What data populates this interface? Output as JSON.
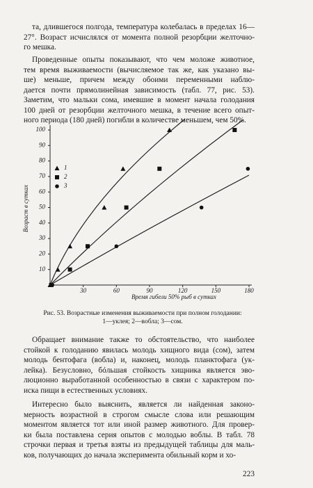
{
  "text_before": [
    [
      "та, длившегося полгода, температура колебалась в пределах 16—",
      "27°. Возраст исчислялся от момента полной резорбции желточно-",
      "го мешка."
    ],
    [
      "Проведенные опыты показывают, что чем моложе животное,",
      "тем время выживаемости (вычисляемое так же, как указано вы-",
      "ше) меньше, причем между обоими переменными наблю-",
      "дается почти прямолинейная зависимость (табл. 77, рис. 53).",
      "Заметим, что мальки сома, имевшие в момент начала голодания",
      "100 дней от резорбции желточного мешка, в течение всего опыт-",
      "ного периода (180 дней) погибли в количестве меньшем, чем 50%."
    ]
  ],
  "chart_data": {
    "type": "scatter",
    "xlabel": "Время гибели 50% рыб в сутках",
    "ylabel": "Возраст в сутках",
    "xlim": [
      0,
      180
    ],
    "ylim": [
      0,
      100
    ],
    "xticks": [
      30,
      60,
      90,
      120,
      150,
      180
    ],
    "yticks": [
      10,
      20,
      30,
      40,
      50,
      60,
      70,
      80,
      90,
      100
    ],
    "series": [
      {
        "name": "1",
        "marker": "triangle",
        "color": "#111",
        "x": [
          0,
          7,
          18,
          49,
          66,
          108
        ],
        "values": [
          0,
          10,
          25,
          50,
          75,
          100
        ]
      },
      {
        "name": "2",
        "marker": "square",
        "color": "#111",
        "x": [
          1,
          18,
          34,
          69,
          99,
          167
        ],
        "values": [
          0,
          10,
          25,
          50,
          75,
          100
        ]
      },
      {
        "name": "3",
        "marker": "circle",
        "color": "#111",
        "x": [
          2,
          60,
          137,
          179
        ],
        "values": [
          0,
          25,
          50,
          75
        ]
      }
    ]
  },
  "caption": [
    "Рис. 53. Возрастные изменения выживаемости при полном голодании:",
    "1—уклея; 2—вобла; 3—сом."
  ],
  "text_after": [
    [
      "Обращает внимание также то обстоятельство, что наиболее",
      "стойкой к голоданию явилась молодь хищного вида (сом), затем",
      "молодь бентофага (вобла) и, наконец, молодь планктофага (ук-",
      "лейка). Безусловно, бóльшая стойкость хищника является эво-",
      "люционно выработанной особенностью в связи с характером по-",
      "иска пищи в естественных условиях."
    ],
    [
      "Интересно было выяснить, является ли найденная законо-",
      "мерность возрастной в строгом смысле слова или решающим",
      "моментом является тот или иной размер животного. Для провер-",
      "ки была поставлена серия опытов с молодью воблы. В табл. 78",
      "строчки первая и третья взяты из предыдущей таблицы для маль-",
      "ков, получающих до начала эксперимента обильный корм и хо-"
    ]
  ],
  "page_number": "223"
}
